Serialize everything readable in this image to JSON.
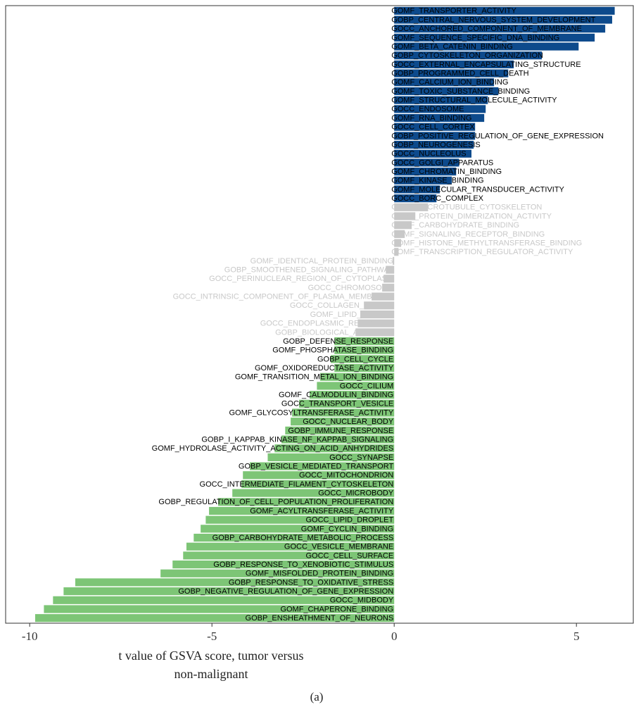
{
  "chart_data": {
    "type": "barh",
    "categories": [
      "GOMF_TRANSPORTER_ACTIVITY",
      "GOBP_CENTRAL_NERVOUS_SYSTEM_DEVELOPMENT",
      "GOCC_ANCHORED_COMPONENT_OF_MEMBRANE",
      "GOMF_SEQUENCE_SPECIFIC_DNA_BINDING",
      "GOMF_BETA_CATENIN_BINDING",
      "GOBP_CYTOSKELETON_ORGANIZATION",
      "GOCC_EXTERNAL_ENCAPSULATING_STRUCTURE",
      "GOBP_PROGRAMMED_CELL_DEATH",
      "GOMF_CALCIUM_ION_BINDING",
      "GOMF_TOXIC_SUBSTANCE_BINDING",
      "GOMF_STRUCTURAL_MOLECULE_ACTIVITY",
      "GOCC_ENDOSOME",
      "GOMF_RNA_BINDING",
      "GOCC_CELL_CORTEX",
      "GOBP_POSITIVE_REGULATION_OF_GENE_EXPRESSION",
      "GOBP_NEUROGENESIS",
      "GOCC_NUCLEOLUS",
      "GOCC_GOLGI_APPARATUS",
      "GOMF_CHROMATIN_BINDING",
      "GOMF_KINASE_BINDING",
      "GOMF_MOLECULAR_TRANSDUCER_ACTIVITY",
      "GOCC_BORC_COMPLEX",
      "GOCC_MICROTUBULE_CYTOSKELETON",
      "GOMF_PROTEIN_DIMERIZATION_ACTIVITY",
      "GOMF_CARBOHYDRATE_BINDING",
      "GOMF_SIGNALING_RECEPTOR_BINDING",
      "GOMF_HISTONE_METHYLTRANSFERASE_BINDING",
      "GOMF_TRANSCRIPTION_REGULATOR_ACTIVITY",
      "GOMF_IDENTICAL_PROTEIN_BINDING",
      "GOBP_SMOOTHENED_SIGNALING_PATHWAY",
      "GOCC_PERINUCLEAR_REGION_OF_CYTOPLASM",
      "GOCC_CHROMOSOME",
      "GOCC_INTRINSIC_COMPONENT_OF_PLASMA_MEMBRANE",
      "GOCC_COLLAGEN_TRIMER",
      "GOMF_LIPID_BINDING",
      "GOCC_ENDOPLASMIC_RETICULUM",
      "GOBP_BIOLOGICAL_ADHESION",
      "GOBP_DEFENSE_RESPONSE",
      "GOMF_PHOSPHATASE_BINDING",
      "GOBP_CELL_CYCLE",
      "GOMF_OXIDOREDUCTASE_ACTIVITY",
      "GOMF_TRANSITION_METAL_ION_BINDING",
      "GOCC_CILIUM",
      "GOMF_CALMODULIN_BINDING",
      "GOCC_TRANSPORT_VESICLE",
      "GOMF_GLYCOSYLTRANSFERASE_ACTIVITY",
      "GOCC_NUCLEAR_BODY",
      "GOBP_IMMUNE_RESPONSE",
      "GOBP_I_KAPPAB_KINASE_NF_KAPPAB_SIGNALING",
      "GOMF_HYDROLASE_ACTIVITY_ACTING_ON_ACID_ANHYDRIDES",
      "GOCC_SYNAPSE",
      "GOBP_VESICLE_MEDIATED_TRANSPORT",
      "GOCC_MITOCHONDRION",
      "GOCC_INTERMEDIATE_FILAMENT_CYTOSKELETON",
      "GOCC_MICROBODY",
      "GOBP_REGULATION_OF_CELL_POPULATION_PROLIFERATION",
      "GOMF_ACYLTRANSFERASE_ACTIVITY",
      "GOCC_LIPID_DROPLET",
      "GOMF_CYCLIN_BINDING",
      "GOBP_CARBOHYDRATE_METABOLIC_PROCESS",
      "GOCC_VESICLE_MEMBRANE",
      "GOCC_CELL_SURFACE",
      "GOBP_RESPONSE_TO_XENOBIOTIC_STIMULUS",
      "GOMF_MISFOLDED_PROTEIN_BINDING",
      "GOBP_RESPONSE_TO_OXIDATIVE_STRESS",
      "GOBP_NEGATIVE_REGULATION_OF_GENE_EXPRESSION",
      "GOCC_MIDBODY",
      "GOMF_CHAPERONE_BINDING",
      "GOBP_ENSHEATHMENT_OF_NEURONS"
    ],
    "values": [
      6.05,
      5.98,
      5.79,
      5.5,
      5.06,
      4.05,
      3.28,
      3.13,
      2.74,
      2.86,
      2.57,
      2.51,
      2.47,
      2.22,
      2.22,
      2.18,
      2.12,
      1.78,
      1.7,
      1.58,
      1.25,
      1.16,
      0.93,
      0.58,
      0.48,
      0.29,
      0.19,
      0.12,
      -0.04,
      -0.23,
      -0.29,
      -0.33,
      -0.62,
      -0.83,
      -0.93,
      -1.0,
      -1.06,
      -1.64,
      -1.64,
      -1.74,
      -1.64,
      -2.03,
      -2.12,
      -2.32,
      -2.61,
      -2.8,
      -2.84,
      -2.99,
      -3.09,
      -3.28,
      -3.47,
      -3.96,
      -4.15,
      -4.19,
      -4.44,
      -4.83,
      -5.08,
      -5.17,
      -5.31,
      -5.5,
      -5.7,
      -5.79,
      -6.08,
      -6.41,
      -8.75,
      -9.07,
      -9.36,
      -9.61,
      -9.85
    ],
    "colors": [
      "#0d4a8c",
      "#0d4a8c",
      "#0d4a8c",
      "#0d4a8c",
      "#0d4a8c",
      "#0d4a8c",
      "#0d4a8c",
      "#0d4a8c",
      "#0d4a8c",
      "#0d4a8c",
      "#0d4a8c",
      "#0d4a8c",
      "#0d4a8c",
      "#0d4a8c",
      "#0d4a8c",
      "#0d4a8c",
      "#0d4a8c",
      "#0d4a8c",
      "#0d4a8c",
      "#0d4a8c",
      "#0d4a8c",
      "#0d4a8c",
      "#c8c8c8",
      "#c8c8c8",
      "#c8c8c8",
      "#c8c8c8",
      "#c8c8c8",
      "#c8c8c8",
      "#c8c8c8",
      "#c8c8c8",
      "#c8c8c8",
      "#c8c8c8",
      "#c8c8c8",
      "#c8c8c8",
      "#c8c8c8",
      "#c8c8c8",
      "#c8c8c8",
      "#7dc576",
      "#7dc576",
      "#7dc576",
      "#7dc576",
      "#7dc576",
      "#7dc576",
      "#7dc576",
      "#7dc576",
      "#7dc576",
      "#7dc576",
      "#7dc576",
      "#7dc576",
      "#7dc576",
      "#7dc576",
      "#7dc576",
      "#7dc576",
      "#7dc576",
      "#7dc576",
      "#7dc576",
      "#7dc576",
      "#7dc576",
      "#7dc576",
      "#7dc576",
      "#7dc576",
      "#7dc576",
      "#7dc576",
      "#7dc576",
      "#7dc576",
      "#7dc576",
      "#7dc576",
      "#7dc576",
      "#7dc576"
    ],
    "muted_color": "#c8c8c8",
    "label_color": "#000000",
    "xlim": [
      -10.66,
      6.56
    ],
    "xticks": [
      -10,
      -5,
      0,
      5
    ],
    "x_label": "t value of GSVA score, tumor versus non-malignant",
    "caption": "(a)"
  }
}
